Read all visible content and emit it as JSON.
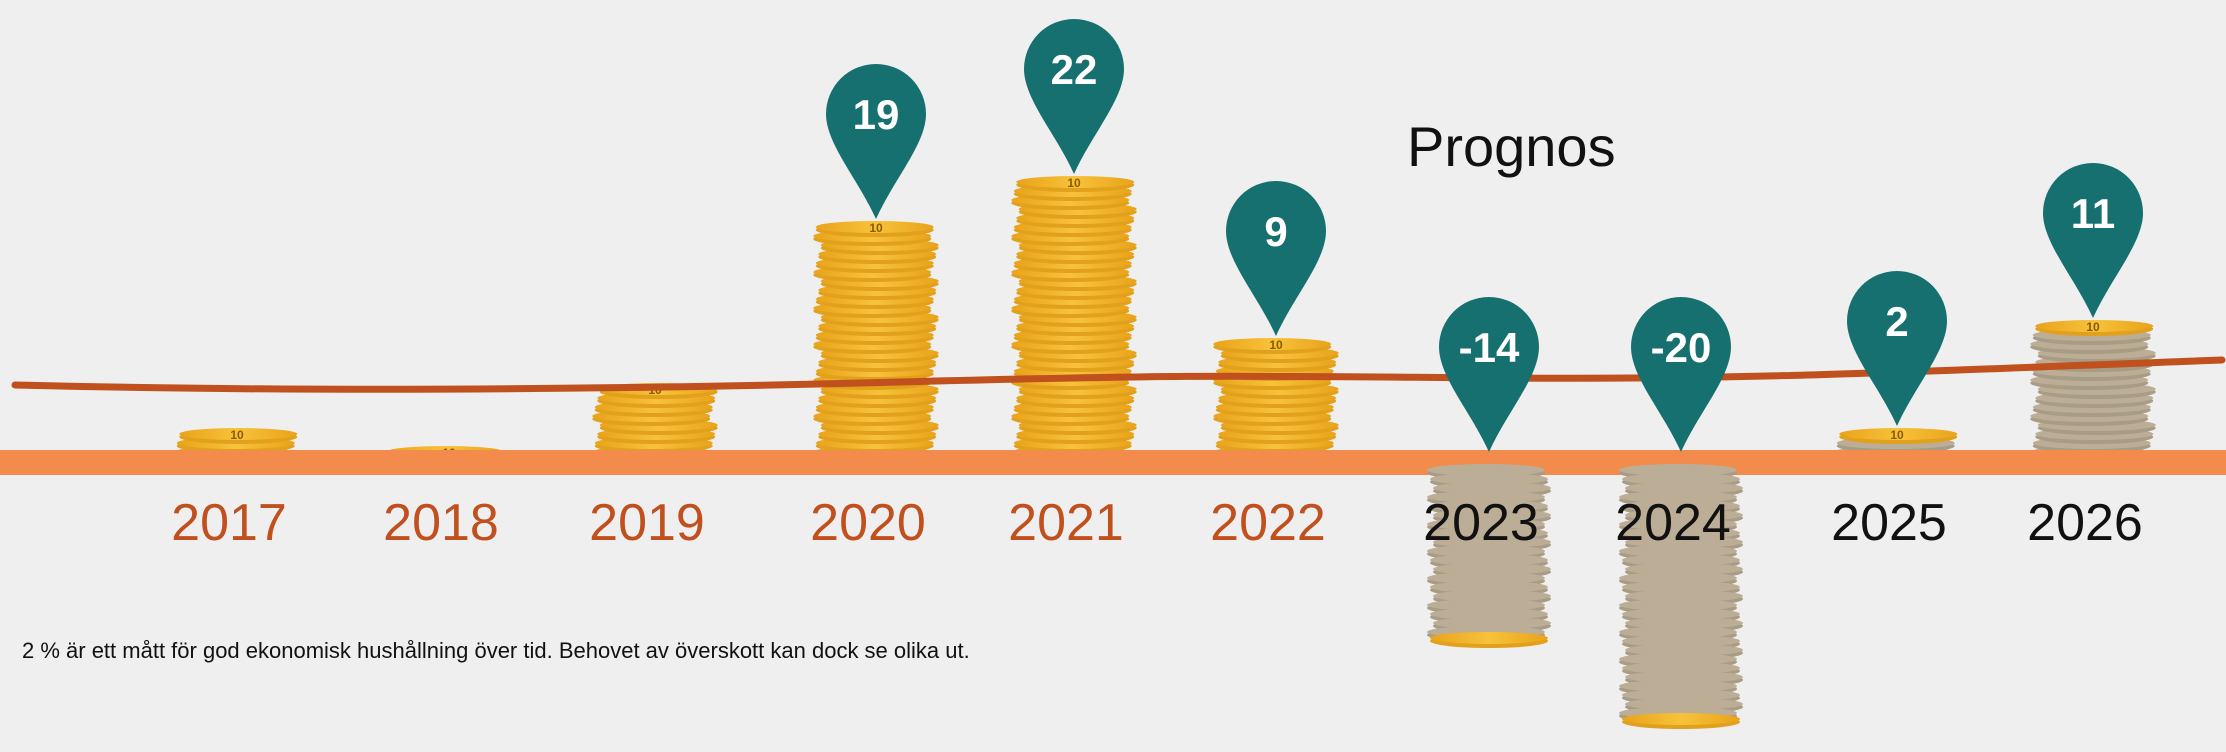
{
  "colors": {
    "background": "#efefef",
    "baseline_band": "#f28b4c",
    "trend_line": "#c0501d",
    "pin": "#16706f",
    "coin": "#f2b528",
    "coin_edge": "#e2a11c",
    "coin_faded": "#bcae96",
    "year_actual": "#c0501d",
    "year_forecast": "#111111"
  },
  "chart_data": {
    "type": "bar",
    "title": "Prognos",
    "categories": [
      "2017",
      "2018",
      "2019",
      "2020",
      "2021",
      "2022",
      "2023",
      "2024",
      "2025",
      "2026"
    ],
    "values": [
      null,
      null,
      null,
      19,
      22,
      9,
      -14,
      -20,
      2,
      11
    ],
    "value_labels": [
      "",
      "",
      "",
      "19",
      "22",
      "9",
      "-14",
      "-20",
      "2",
      "11"
    ],
    "coin_label": "10",
    "forecast_from": "2023",
    "trend_line": true,
    "grid": false
  },
  "footnote": "2 % är ett mått för god ekonomisk hushållning över tid. Behovet av överskott kan dock se olika ut."
}
